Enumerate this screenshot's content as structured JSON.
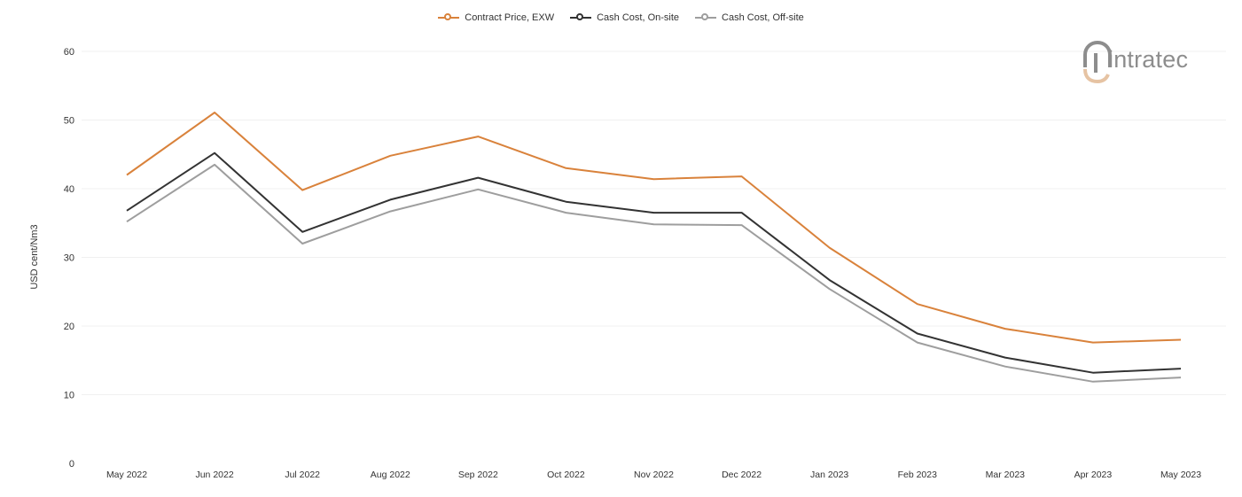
{
  "brand": {
    "name": "intratec"
  },
  "chart_data": {
    "type": "line",
    "title": "",
    "xlabel": "",
    "ylabel": "USD cent/Nm3",
    "ylim": [
      0,
      60
    ],
    "yticks": [
      0,
      10,
      20,
      30,
      40,
      50,
      60
    ],
    "grid": true,
    "legend_position": "top-center",
    "categories": [
      "May 2022",
      "Jun 2022",
      "Jul 2022",
      "Aug 2022",
      "Sep 2022",
      "Oct 2022",
      "Nov 2022",
      "Dec 2022",
      "Jan 2023",
      "Feb 2023",
      "Mar 2023",
      "Apr 2023",
      "May 2023"
    ],
    "series": [
      {
        "name": "Contract Price, EXW",
        "color": "#d9823b",
        "values": [
          42.0,
          51.1,
          39.8,
          44.8,
          47.6,
          43.0,
          41.4,
          41.8,
          31.4,
          23.2,
          19.6,
          17.6,
          18.0
        ]
      },
      {
        "name": "Cash Cost, On-site",
        "color": "#333333",
        "values": [
          36.8,
          45.2,
          33.7,
          38.4,
          41.6,
          38.1,
          36.5,
          36.5,
          26.7,
          18.9,
          15.4,
          13.2,
          13.8
        ]
      },
      {
        "name": "Cash Cost, Off-site",
        "color": "#9e9e9e",
        "values": [
          35.2,
          43.5,
          32.0,
          36.7,
          39.9,
          36.5,
          34.8,
          34.7,
          25.4,
          17.6,
          14.1,
          11.9,
          12.5
        ]
      }
    ]
  }
}
